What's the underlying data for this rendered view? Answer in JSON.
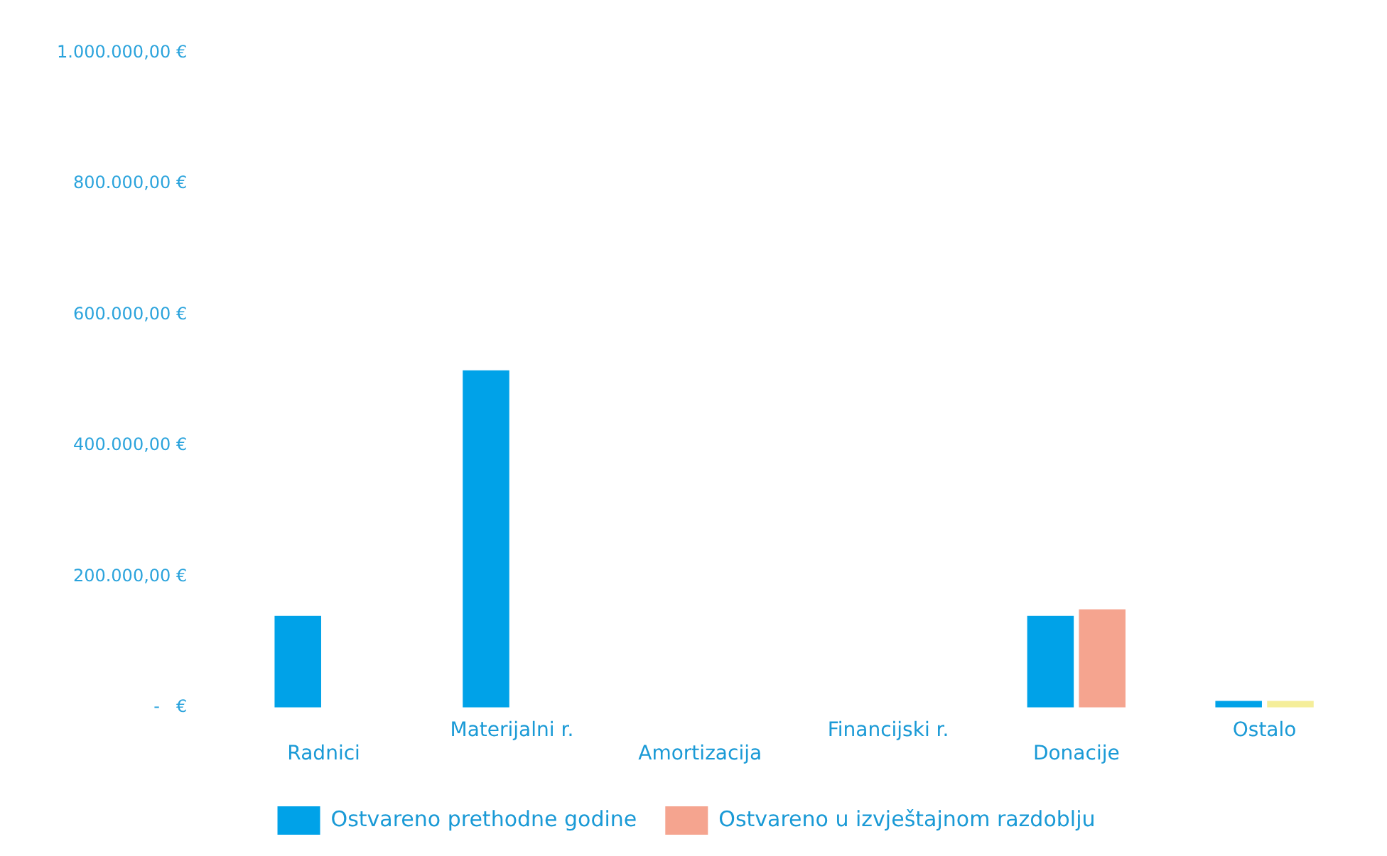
{
  "chart_data": {
    "type": "bar",
    "categories": [
      "Radnici",
      "Materijalni r.",
      "Amortizacija",
      "Financijski r.",
      "Donacije",
      "Ostalo"
    ],
    "series": [
      {
        "name": "Ostvareno prethodne godine",
        "color": "#00a2e8",
        "values": [
          140000,
          515000,
          null,
          null,
          140000,
          10000
        ]
      },
      {
        "name": "Ostvareno u izvještajnom razdoblju",
        "color": "#f5a48f",
        "colors": [
          "#f5a48f",
          "#f5a48f",
          "#f5a48f",
          "#f5a48f",
          "#f5a48f",
          "#f5ee9a"
        ],
        "values": [
          null,
          null,
          null,
          null,
          150000,
          10000
        ]
      }
    ],
    "ylim": [
      0,
      1000000
    ],
    "yticks": [
      {
        "value": 0,
        "label": "-   €"
      },
      {
        "value": 200000,
        "label": "200.000,00 €"
      },
      {
        "value": 400000,
        "label": "400.000,00 €"
      },
      {
        "value": 600000,
        "label": "600.000,00 €"
      },
      {
        "value": 800000,
        "label": "800.000,00 €"
      },
      {
        "value": 1000000,
        "label": "1.000.000,00 €"
      }
    ],
    "grid": false,
    "legend": "bottom"
  }
}
